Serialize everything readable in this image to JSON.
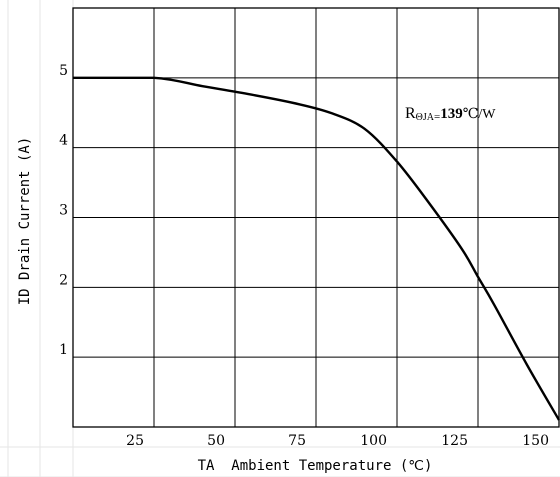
{
  "chart_data": {
    "type": "line",
    "title": "",
    "xlabel": "TA  Ambient Temperature (℃)",
    "ylabel": "ID Drain Current (A)",
    "xlim": [
      0,
      150
    ],
    "ylim": [
      0,
      6
    ],
    "x_ticks": [
      "25",
      "50",
      "75",
      "100",
      "125",
      "150"
    ],
    "y_ticks": [
      "1",
      "2",
      "3",
      "4",
      "5"
    ],
    "grid": true,
    "series": [
      {
        "x": [
          0,
          25,
          40,
          55,
          70,
          80,
          90,
          100,
          110,
          120,
          125,
          130,
          140,
          150
        ],
        "y": [
          5.0,
          5.0,
          4.88,
          4.76,
          4.62,
          4.49,
          4.27,
          3.8,
          3.2,
          2.55,
          2.15,
          1.75,
          0.9,
          0.1
        ]
      }
    ],
    "annotation": {
      "main": "R",
      "subscript": "ΘJA",
      "equals": "=",
      "value": "139",
      "unit": "℃/W"
    }
  }
}
